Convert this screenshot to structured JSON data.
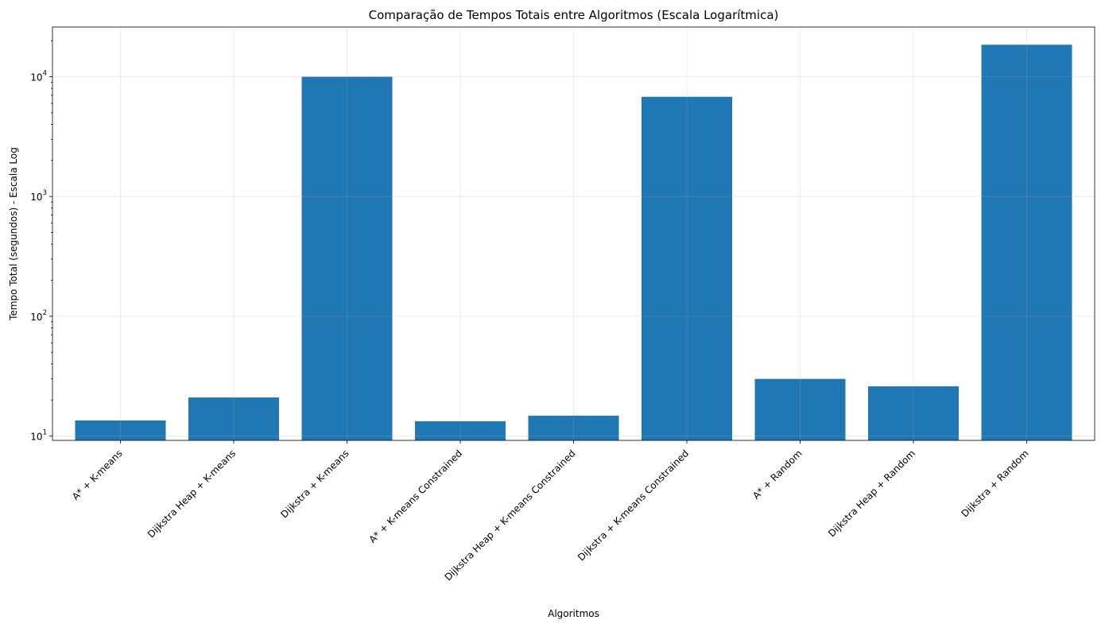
{
  "chart_data": {
    "type": "bar",
    "title": "Comparação de Tempos Totais entre Algoritmos (Escala Logarítmica)",
    "xlabel": "Algoritmos",
    "ylabel": "Tempo Total (segundos) - Escala Log",
    "yscale": "log",
    "ylim": [
      9.2,
      26000
    ],
    "ytick_values": [
      10,
      100,
      1000,
      10000
    ],
    "ytick_labels": [
      {
        "base": "10",
        "exp": "1"
      },
      {
        "base": "10",
        "exp": "2"
      },
      {
        "base": "10",
        "exp": "3"
      },
      {
        "base": "10",
        "exp": "4"
      }
    ],
    "grid": true,
    "bar_color": "#1f77b4",
    "categories": [
      "A* + K-means",
      "Dijkstra Heap + K-means",
      "Dijkstra + K-means",
      "A* + K-means Constrained",
      "Dijkstra Heap + K-means Constrained",
      "Dijkstra + K-means Constrained",
      "A* + Random",
      "Dijkstra Heap + Random",
      "Dijkstra + Random"
    ],
    "values": [
      13.5,
      21,
      10000,
      13.3,
      14.8,
      6800,
      30,
      26,
      18500
    ]
  }
}
